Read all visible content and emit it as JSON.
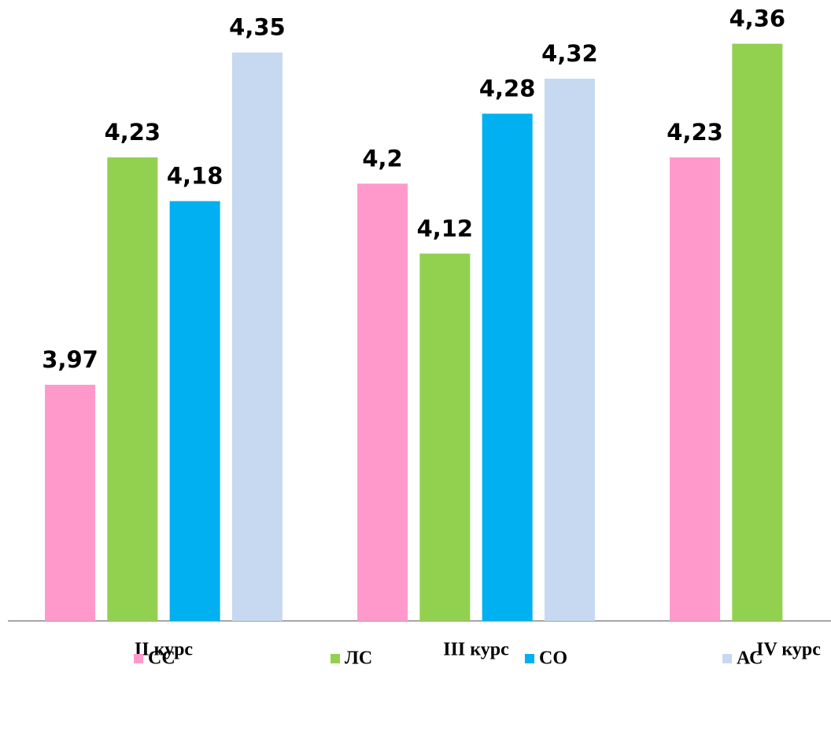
{
  "chart_data": {
    "type": "bar",
    "categories": [
      "II курс",
      "III курс",
      "IV курс"
    ],
    "series": [
      {
        "name": "СС",
        "color": "#ff99cc",
        "values": [
          3.97,
          4.2,
          4.23
        ],
        "value_labels": [
          "3,97",
          "4,2",
          "4,23"
        ]
      },
      {
        "name": "ЛС",
        "color": "#92d050",
        "values": [
          4.23,
          4.12,
          4.36
        ],
        "value_labels": [
          "4,23",
          "4,12",
          "4,36"
        ]
      },
      {
        "name": "СО",
        "color": "#00b0f0",
        "values": [
          4.18,
          4.28,
          null
        ],
        "value_labels": [
          "4,18",
          "4,28",
          null
        ]
      },
      {
        "name": "АС",
        "color": "#c6d9f1",
        "values": [
          4.35,
          4.32,
          null
        ],
        "value_labels": [
          "4,35",
          "4,32",
          null
        ]
      }
    ],
    "ylim": [
      3.7,
      4.41
    ]
  }
}
